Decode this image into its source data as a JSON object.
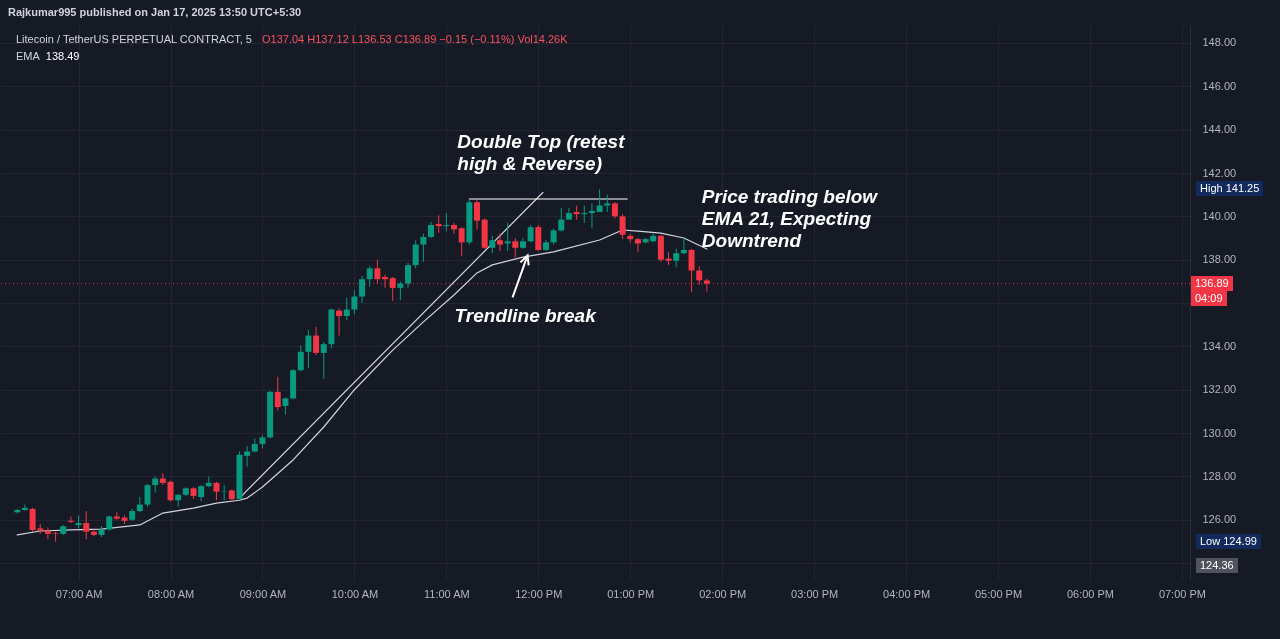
{
  "chart_data": {
    "type": "candlestick",
    "title": "Litecoin / TetherUS PERPETUAL CONTRACT, 5",
    "subtitle": "O137.04 H137.12 L136.53 C136.89 −0.15 (−0.11%) Vol14.26K",
    "x": [
      "2025-01-17T06:20",
      "2025-01-17T06:25",
      "2025-01-17T06:30",
      "2025-01-17T06:35",
      "2025-01-17T06:40",
      "2025-01-17T06:45",
      "2025-01-17T06:50",
      "2025-01-17T06:55",
      "2025-01-17T07:00",
      "2025-01-17T07:05",
      "2025-01-17T07:10",
      "2025-01-17T07:15",
      "2025-01-17T07:20",
      "2025-01-17T07:25",
      "2025-01-17T07:30",
      "2025-01-17T07:35",
      "2025-01-17T07:40",
      "2025-01-17T07:45",
      "2025-01-17T07:50",
      "2025-01-17T07:55",
      "2025-01-17T08:00",
      "2025-01-17T08:05",
      "2025-01-17T08:10",
      "2025-01-17T08:15",
      "2025-01-17T08:20",
      "2025-01-17T08:25",
      "2025-01-17T08:30",
      "2025-01-17T08:35",
      "2025-01-17T08:40",
      "2025-01-17T08:45",
      "2025-01-17T08:50",
      "2025-01-17T08:55",
      "2025-01-17T09:00",
      "2025-01-17T09:05",
      "2025-01-17T09:10",
      "2025-01-17T09:15",
      "2025-01-17T09:20",
      "2025-01-17T09:25",
      "2025-01-17T09:30",
      "2025-01-17T09:35",
      "2025-01-17T09:40",
      "2025-01-17T09:45",
      "2025-01-17T09:50",
      "2025-01-17T09:55",
      "2025-01-17T10:00",
      "2025-01-17T10:05",
      "2025-01-17T10:10",
      "2025-01-17T10:15",
      "2025-01-17T10:20",
      "2025-01-17T10:25",
      "2025-01-17T10:30",
      "2025-01-17T10:35",
      "2025-01-17T10:40",
      "2025-01-17T10:45",
      "2025-01-17T10:50",
      "2025-01-17T10:55",
      "2025-01-17T11:00",
      "2025-01-17T11:05",
      "2025-01-17T11:10",
      "2025-01-17T11:15",
      "2025-01-17T11:20",
      "2025-01-17T11:25",
      "2025-01-17T11:30",
      "2025-01-17T11:35",
      "2025-01-17T11:40",
      "2025-01-17T11:45",
      "2025-01-17T11:50",
      "2025-01-17T11:55",
      "2025-01-17T12:00",
      "2025-01-17T12:05",
      "2025-01-17T12:10",
      "2025-01-17T12:15",
      "2025-01-17T12:20",
      "2025-01-17T12:25",
      "2025-01-17T12:30",
      "2025-01-17T12:35",
      "2025-01-17T12:40",
      "2025-01-17T12:45",
      "2025-01-17T12:50",
      "2025-01-17T12:55",
      "2025-01-17T13:00",
      "2025-01-17T13:05",
      "2025-01-17T13:10",
      "2025-01-17T13:15",
      "2025-01-17T13:20",
      "2025-01-17T13:25",
      "2025-01-17T13:30",
      "2025-01-17T13:35",
      "2025-01-17T13:40",
      "2025-01-17T13:45",
      "2025-01-17T13:50"
    ],
    "ohlc": [
      [
        126.35,
        126.5,
        126.3,
        126.45
      ],
      [
        126.45,
        126.7,
        126.4,
        126.55
      ],
      [
        126.5,
        126.55,
        125.45,
        125.53
      ],
      [
        125.6,
        125.8,
        125.35,
        125.5
      ],
      [
        125.5,
        125.65,
        125.1,
        125.35
      ],
      [
        125.38,
        125.45,
        124.99,
        125.35
      ],
      [
        125.35,
        125.75,
        125.3,
        125.7
      ],
      [
        125.95,
        126.15,
        125.85,
        125.9
      ],
      [
        125.75,
        126.2,
        125.6,
        125.85
      ],
      [
        125.85,
        126.4,
        125.1,
        125.45
      ],
      [
        125.45,
        125.55,
        125.25,
        125.3
      ],
      [
        125.3,
        125.7,
        125.2,
        125.55
      ],
      [
        125.55,
        126.2,
        125.5,
        126.15
      ],
      [
        126.15,
        126.35,
        126.0,
        126.05
      ],
      [
        126.1,
        126.2,
        125.8,
        125.95
      ],
      [
        126.0,
        126.5,
        125.95,
        126.4
      ],
      [
        126.4,
        127.05,
        126.35,
        126.7
      ],
      [
        126.7,
        127.65,
        126.6,
        127.6
      ],
      [
        127.6,
        128.0,
        127.25,
        127.9
      ],
      [
        127.9,
        128.15,
        127.6,
        127.7
      ],
      [
        127.75,
        127.8,
        126.85,
        126.9
      ],
      [
        126.9,
        127.2,
        126.6,
        127.15
      ],
      [
        127.15,
        127.5,
        127.1,
        127.45
      ],
      [
        127.45,
        127.5,
        126.95,
        127.1
      ],
      [
        127.05,
        127.6,
        126.85,
        127.55
      ],
      [
        127.55,
        128.0,
        127.5,
        127.7
      ],
      [
        127.7,
        127.75,
        126.9,
        127.3
      ],
      [
        127.3,
        127.6,
        126.9,
        127.32
      ],
      [
        127.35,
        127.4,
        126.9,
        126.95
      ],
      [
        126.95,
        129.15,
        126.95,
        129.0
      ],
      [
        128.95,
        129.4,
        128.45,
        129.15
      ],
      [
        129.15,
        129.75,
        129.1,
        129.5
      ],
      [
        129.5,
        129.9,
        129.3,
        129.8
      ],
      [
        129.8,
        131.95,
        129.75,
        131.9
      ],
      [
        131.9,
        132.6,
        131.05,
        131.2
      ],
      [
        131.25,
        131.65,
        130.85,
        131.6
      ],
      [
        131.6,
        132.95,
        131.55,
        132.9
      ],
      [
        132.9,
        134.05,
        132.85,
        133.75
      ],
      [
        133.75,
        134.75,
        133.0,
        134.5
      ],
      [
        134.5,
        134.9,
        133.6,
        133.7
      ],
      [
        133.7,
        134.2,
        132.5,
        134.1
      ],
      [
        134.1,
        135.75,
        133.9,
        135.7
      ],
      [
        135.65,
        135.75,
        134.5,
        135.4
      ],
      [
        135.4,
        136.25,
        135.2,
        135.7
      ],
      [
        135.7,
        136.6,
        135.5,
        136.3
      ],
      [
        136.3,
        137.25,
        136.0,
        137.1
      ],
      [
        137.1,
        137.7,
        136.75,
        137.6
      ],
      [
        137.6,
        138.0,
        136.9,
        137.1
      ],
      [
        137.2,
        137.3,
        136.7,
        137.1
      ],
      [
        137.15,
        137.2,
        136.1,
        136.7
      ],
      [
        136.7,
        137.0,
        136.15,
        136.9
      ],
      [
        136.9,
        137.85,
        136.7,
        137.75
      ],
      [
        137.75,
        138.9,
        137.6,
        138.7
      ],
      [
        138.7,
        139.2,
        137.9,
        139.05
      ],
      [
        139.05,
        139.75,
        139.0,
        139.6
      ],
      [
        139.65,
        140.05,
        139.25,
        139.55
      ],
      [
        139.55,
        140.15,
        139.3,
        139.6
      ],
      [
        139.6,
        139.7,
        139.2,
        139.4
      ],
      [
        139.45,
        139.5,
        138.15,
        138.8
      ],
      [
        138.8,
        140.75,
        138.7,
        140.65
      ],
      [
        140.65,
        140.75,
        139.4,
        139.8
      ],
      [
        139.85,
        139.9,
        138.5,
        138.55
      ],
      [
        138.55,
        139.1,
        138.3,
        138.9
      ],
      [
        138.9,
        139.2,
        138.4,
        138.7
      ],
      [
        138.75,
        139.7,
        138.4,
        138.85
      ],
      [
        138.85,
        139.0,
        138.1,
        138.55
      ],
      [
        138.55,
        139.0,
        138.5,
        138.85
      ],
      [
        138.85,
        139.6,
        138.8,
        139.5
      ],
      [
        139.5,
        139.6,
        138.4,
        138.45
      ],
      [
        138.45,
        138.9,
        138.4,
        138.8
      ],
      [
        138.8,
        139.45,
        138.7,
        139.35
      ],
      [
        139.35,
        140.4,
        139.3,
        139.85
      ],
      [
        139.85,
        140.4,
        139.85,
        140.15
      ],
      [
        140.2,
        140.5,
        139.85,
        140.1
      ],
      [
        140.1,
        140.5,
        139.7,
        140.15
      ],
      [
        140.15,
        140.6,
        139.45,
        140.25
      ],
      [
        140.2,
        141.25,
        140.2,
        140.5
      ],
      [
        140.5,
        141.0,
        140.2,
        140.6
      ],
      [
        140.6,
        140.65,
        139.9,
        140.0
      ],
      [
        140.0,
        140.1,
        138.95,
        139.15
      ],
      [
        139.1,
        139.2,
        138.8,
        138.95
      ],
      [
        138.95,
        139.0,
        138.35,
        138.75
      ],
      [
        138.8,
        139.0,
        138.75,
        138.95
      ],
      [
        138.85,
        139.2,
        138.8,
        139.1
      ],
      [
        139.1,
        139.15,
        137.9,
        138.0
      ],
      [
        138.05,
        138.35,
        137.75,
        137.95
      ],
      [
        137.95,
        138.5,
        137.65,
        138.3
      ],
      [
        138.3,
        139.0,
        138.25,
        138.45
      ],
      [
        138.45,
        138.5,
        136.5,
        137.5
      ],
      [
        137.5,
        137.7,
        136.85,
        137.05
      ],
      [
        137.04,
        137.12,
        136.53,
        136.89
      ]
    ],
    "colors": [
      "#089981",
      "#089981",
      "#f23645",
      "#f23645",
      "#f23645",
      "#f23645",
      "#089981",
      "#f23645",
      "#089981",
      "#f23645",
      "#f23645",
      "#089981",
      "#089981",
      "#f23645",
      "#f23645",
      "#089981",
      "#089981",
      "#089981",
      "#089981",
      "#f23645",
      "#f23645",
      "#089981",
      "#089981",
      "#f23645",
      "#089981",
      "#089981",
      "#f23645",
      "#089981",
      "#f23645",
      "#089981",
      "#089981",
      "#089981",
      "#089981",
      "#089981",
      "#f23645",
      "#089981",
      "#089981",
      "#089981",
      "#089981",
      "#f23645",
      "#089981",
      "#089981",
      "#f23645",
      "#089981",
      "#089981",
      "#089981",
      "#089981",
      "#f23645",
      "#f23645",
      "#f23645",
      "#089981",
      "#089981",
      "#089981",
      "#089981",
      "#089981",
      "#f23645",
      "#089981",
      "#f23645",
      "#f23645",
      "#089981",
      "#f23645",
      "#f23645",
      "#089981",
      "#f23645",
      "#089981",
      "#f23645",
      "#089981",
      "#089981",
      "#f23645",
      "#089981",
      "#089981",
      "#089981",
      "#089981",
      "#f23645",
      "#089981",
      "#089981",
      "#089981",
      "#089981",
      "#f23645",
      "#f23645",
      "#f23645",
      "#f23645",
      "#089981",
      "#089981",
      "#f23645",
      "#f23645",
      "#089981",
      "#089981",
      "#f23645",
      "#f23645",
      "#f23645"
    ],
    "series": [
      {
        "name": "EMA",
        "type": "line",
        "color": "#d1d4dc",
        "x": [
          "2025-01-17T06:20",
          "2025-01-17T06:35",
          "2025-01-17T06:55",
          "2025-01-17T07:15",
          "2025-01-17T07:40",
          "2025-01-17T07:55",
          "2025-01-17T08:15",
          "2025-01-17T08:30",
          "2025-01-17T08:45",
          "2025-01-17T08:50",
          "2025-01-17T09:00",
          "2025-01-17T09:20",
          "2025-01-17T09:40",
          "2025-01-17T10:00",
          "2025-01-17T10:25",
          "2025-01-17T10:45",
          "2025-01-17T11:05",
          "2025-01-17T11:20",
          "2025-01-17T11:30",
          "2025-01-17T11:50",
          "2025-01-17T12:10",
          "2025-01-17T12:15",
          "2025-01-17T12:40",
          "2025-01-17T12:55",
          "2025-01-17T13:05",
          "2025-01-17T13:20",
          "2025-01-17T13:35",
          "2025-01-17T13:50"
        ],
        "values": [
          125.3,
          125.48,
          125.53,
          125.57,
          125.76,
          126.31,
          126.54,
          126.77,
          126.9,
          127.0,
          127.51,
          128.76,
          130.28,
          132.0,
          133.83,
          135.13,
          136.37,
          137.39,
          137.76,
          138.12,
          138.36,
          138.45,
          138.91,
          139.37,
          139.32,
          139.23,
          139.0,
          138.49
        ]
      },
      {
        "type": "line",
        "color": "#d1d4dc",
        "x": [
          "2025-01-17T08:45",
          "2025-01-17T12:03"
        ],
        "values": [
          127.0,
          141.1
        ]
      },
      {
        "type": "line",
        "color": "#ffffff",
        "x": [
          "2025-01-17T11:15",
          "2025-01-17T12:58"
        ],
        "values": [
          140.8,
          140.8
        ]
      }
    ],
    "xlim": [
      "2025-01-17T06:12",
      "2025-01-17T19:02"
    ],
    "xticks": [
      {
        "value": "2025-01-17T07:00",
        "label": "07:00 AM"
      },
      {
        "value": "2025-01-17T08:00",
        "label": "08:00 AM"
      },
      {
        "value": "2025-01-17T09:00",
        "label": "09:00 AM"
      },
      {
        "value": "2025-01-17T10:00",
        "label": "10:00 AM"
      },
      {
        "value": "2025-01-17T11:00",
        "label": "11:00 AM"
      },
      {
        "value": "2025-01-17T12:00",
        "label": "12:00 PM"
      },
      {
        "value": "2025-01-17T13:00",
        "label": "01:00 PM"
      },
      {
        "value": "2025-01-17T14:00",
        "label": "02:00 PM"
      },
      {
        "value": "2025-01-17T15:00",
        "label": "03:00 PM"
      },
      {
        "value": "2025-01-17T16:00",
        "label": "04:00 PM"
      },
      {
        "value": "2025-01-17T17:00",
        "label": "05:00 PM"
      },
      {
        "value": "2025-01-17T18:00",
        "label": "06:00 PM"
      },
      {
        "value": "2025-01-17T19:00",
        "label": "07:00 PM"
      }
    ],
    "ylim": [
      123.22,
      148.83
    ],
    "yticks": [
      {
        "value": 124,
        "label": null
      },
      {
        "value": 126,
        "label": "126.00"
      },
      {
        "value": 128,
        "label": "128.00"
      },
      {
        "value": 130,
        "label": "130.00"
      },
      {
        "value": 132,
        "label": "132.00"
      },
      {
        "value": 134,
        "label": "134.00"
      },
      {
        "value": 136,
        "label": null
      },
      {
        "value": 138,
        "label": "138.00"
      },
      {
        "value": 140,
        "label": "140.00"
      },
      {
        "value": 142,
        "label": "142.00"
      },
      {
        "value": 144,
        "label": "144.00"
      },
      {
        "value": 146,
        "label": "146.00"
      },
      {
        "value": 148,
        "label": "148.00"
      }
    ],
    "ref_lines": [
      {
        "axis": "y",
        "value": 136.89,
        "label": "136.89",
        "color": "#f23645",
        "line_style": "dotted"
      }
    ],
    "annotations": [
      "Rajkumar995 published on Jan 17, 2025 13:50 UTC+5:30",
      {
        "text": "Double Top (retest high & Reverse)",
        "x": "2025-01-17T11:15",
        "y": 140.8
      },
      {
        "text": "Trendline break",
        "x": "2025-01-17T11:53",
        "y": 138.2
      },
      {
        "text": "Price trading below EMA 21, Expecting Downtrend",
        "x": "2025-01-17T13:50",
        "y": 138.49
      },
      "High 141.25",
      "Low 124.99",
      "124.36",
      "04:09",
      "138.49"
    ],
    "grid": true,
    "legend": "top left",
    "line_style": "solid"
  }
}
